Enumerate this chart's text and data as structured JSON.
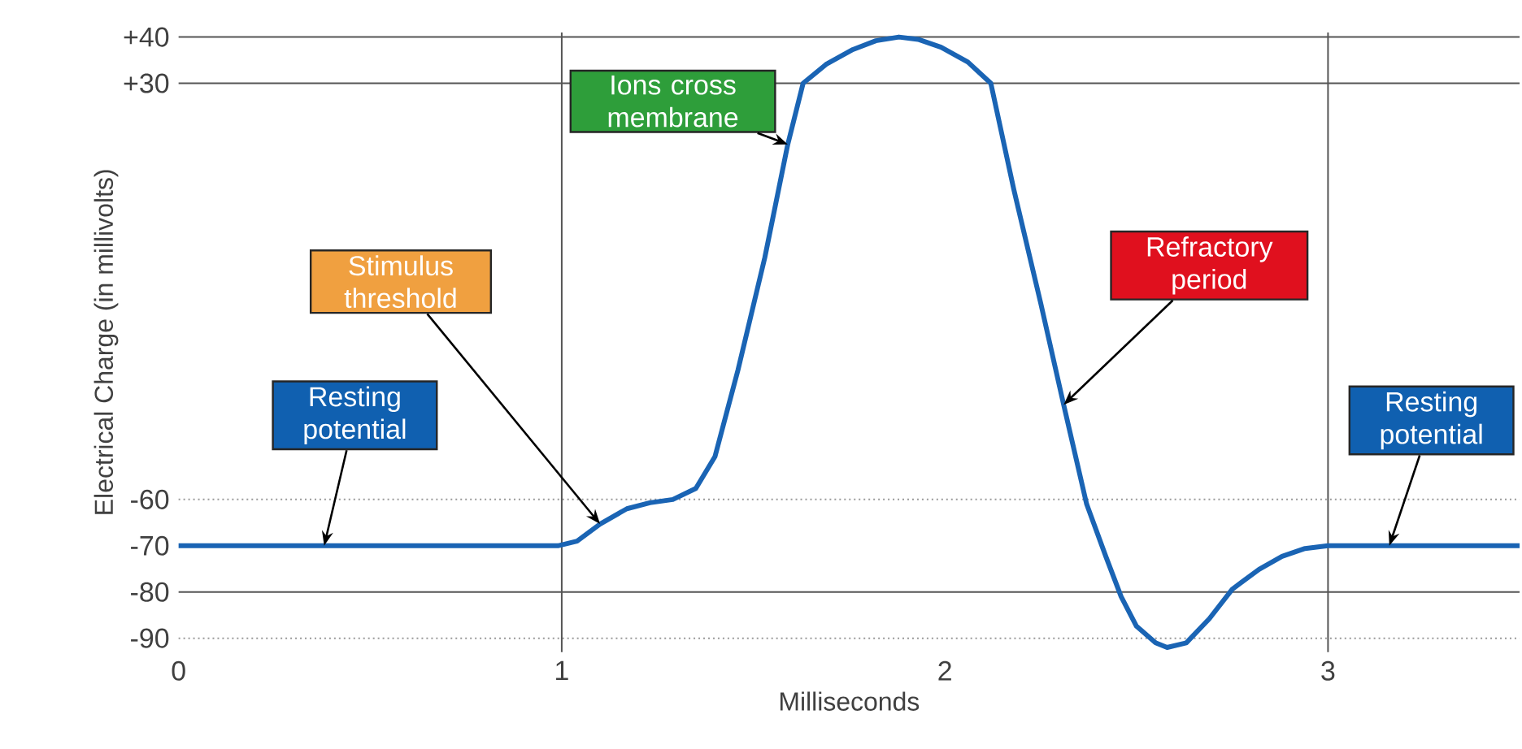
{
  "chart_data": {
    "type": "line",
    "xlabel": "Milliseconds",
    "ylabel": "Electrical Charge (in millivolts)",
    "x": [
      0,
      0.99,
      1.04,
      1.1,
      1.17,
      1.23,
      1.29,
      1.35,
      1.4,
      1.46,
      1.53,
      1.59,
      1.63,
      1.69,
      1.76,
      1.82,
      1.88,
      1.93,
      1.99,
      2.06,
      2.12,
      2.18,
      2.25,
      2.31,
      2.37,
      2.42,
      2.46,
      2.5,
      2.55,
      2.58,
      2.63,
      2.69,
      2.75,
      2.82,
      2.88,
      2.94,
      3.0,
      3.5
    ],
    "series": [
      {
        "color": "#1a64b4",
        "values": [
          -70,
          -70,
          -69,
          -65.3,
          -62,
          -60.7,
          -60,
          -57.6,
          -50.7,
          -32,
          -7.7,
          16.8,
          30,
          34.1,
          37.3,
          39.2,
          40,
          39.5,
          37.8,
          34.6,
          30,
          7,
          -17.5,
          -39.5,
          -61,
          -72.3,
          -81,
          -87.4,
          -91,
          -92,
          -91,
          -85.8,
          -79.4,
          -75.1,
          -72.3,
          -70.6,
          -70,
          -70
        ]
      }
    ],
    "xlim": [
      0,
      3.5
    ],
    "ylim": [
      -93,
      41
    ],
    "xticks": [
      0,
      1,
      2,
      3
    ],
    "yticks": [
      {
        "value": 40,
        "label": "+40"
      },
      {
        "value": 30,
        "label": "+30"
      },
      -60,
      -70,
      -80,
      -90
    ],
    "ref_lines": [
      {
        "axis": "y",
        "value": 40,
        "color": "#555555",
        "line_style": "solid"
      },
      {
        "axis": "y",
        "value": 30,
        "color": "#555555",
        "line_style": "solid"
      },
      {
        "axis": "y",
        "value": -60,
        "color": "#999999",
        "line_style": "dotted"
      },
      {
        "axis": "y",
        "value": -80,
        "color": "#555555",
        "line_style": "solid"
      },
      {
        "axis": "y",
        "value": -90,
        "color": "#999999",
        "line_style": "dotted"
      },
      {
        "axis": "x",
        "value": 1,
        "color": "#555555",
        "line_style": "solid"
      },
      {
        "axis": "x",
        "value": 3,
        "color": "#555555",
        "line_style": "solid"
      }
    ],
    "annotations": [
      {
        "text": "Resting potential",
        "x": 0.38,
        "y": -70
      },
      {
        "text": "Stimulus threshold",
        "x": 1.1,
        "y": -65.3
      },
      {
        "text": "Ions cross membrane",
        "x": 1.59,
        "y": 16.8
      },
      {
        "text": "Refractory period",
        "x": 2.31,
        "y": -39.5
      },
      {
        "text": "Resting potential",
        "x": 3.16,
        "y": -70
      }
    ]
  }
}
